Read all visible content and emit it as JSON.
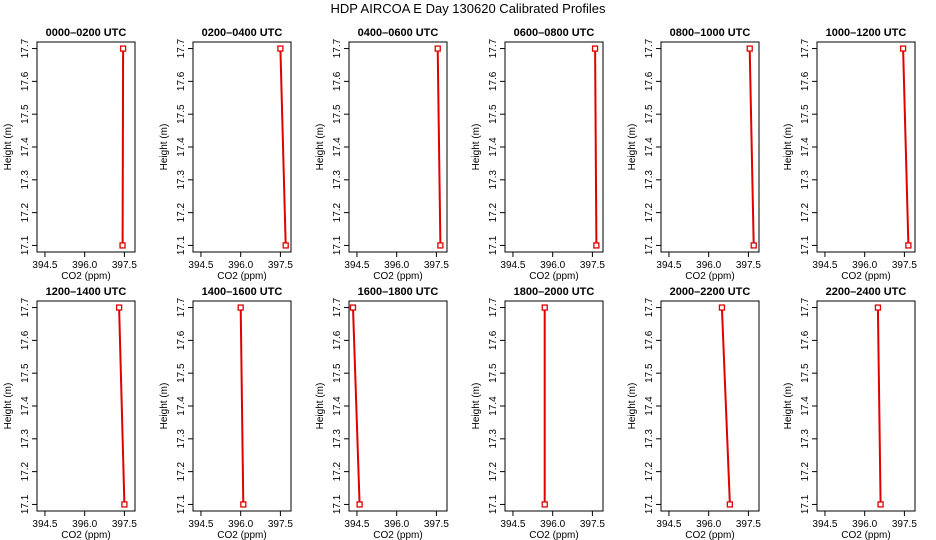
{
  "figure": {
    "title": "HDP AIRCOA E  Day 130620  Calibrated Profiles"
  },
  "chart_data": [
    {
      "type": "line",
      "title": "0000–0200 UTC",
      "xlabel": "CO2 (ppm)",
      "ylabel": "Height (m)",
      "xlim": [
        394.2,
        397.9
      ],
      "ylim": [
        17.08,
        17.72
      ],
      "xticks": [
        394.5,
        396.0,
        397.5
      ],
      "xtick_labels": [
        "394.5",
        "396.0",
        "397.5"
      ],
      "yticks": [
        17.1,
        17.2,
        17.3,
        17.4,
        17.5,
        17.6,
        17.7
      ],
      "ytick_labels": [
        "17.1",
        "17.2",
        "17.3",
        "17.4",
        "17.5",
        "17.6",
        "17.7"
      ],
      "grid": false,
      "series": [
        {
          "color": "#e00000",
          "points": [
            {
              "x": 397.45,
              "y": 17.7
            },
            {
              "x": 397.43,
              "y": 17.1
            }
          ]
        }
      ]
    },
    {
      "type": "line",
      "title": "0200–0400 UTC",
      "xlabel": "CO2 (ppm)",
      "ylabel": "Height (m)",
      "xlim": [
        394.2,
        397.9
      ],
      "ylim": [
        17.08,
        17.72
      ],
      "xticks": [
        394.5,
        396.0,
        397.5
      ],
      "xtick_labels": [
        "394.5",
        "396.0",
        "397.5"
      ],
      "yticks": [
        17.1,
        17.2,
        17.3,
        17.4,
        17.5,
        17.6,
        17.7
      ],
      "ytick_labels": [
        "17.1",
        "17.2",
        "17.3",
        "17.4",
        "17.5",
        "17.6",
        "17.7"
      ],
      "grid": false,
      "series": [
        {
          "color": "#e00000",
          "points": [
            {
              "x": 397.5,
              "y": 17.7
            },
            {
              "x": 397.7,
              "y": 17.1
            }
          ]
        }
      ]
    },
    {
      "type": "line",
      "title": "0400–0600 UTC",
      "xlabel": "CO2 (ppm)",
      "ylabel": "Height (m)",
      "xlim": [
        394.2,
        397.9
      ],
      "ylim": [
        17.08,
        17.72
      ],
      "xticks": [
        394.5,
        396.0,
        397.5
      ],
      "xtick_labels": [
        "394.5",
        "396.0",
        "397.5"
      ],
      "yticks": [
        17.1,
        17.2,
        17.3,
        17.4,
        17.5,
        17.6,
        17.7
      ],
      "ytick_labels": [
        "17.1",
        "17.2",
        "17.3",
        "17.4",
        "17.5",
        "17.6",
        "17.7"
      ],
      "grid": false,
      "series": [
        {
          "color": "#e00000",
          "points": [
            {
              "x": 397.55,
              "y": 17.7
            },
            {
              "x": 397.65,
              "y": 17.1
            }
          ]
        }
      ]
    },
    {
      "type": "line",
      "title": "0600–0800 UTC",
      "xlabel": "CO2 (ppm)",
      "ylabel": "Height (m)",
      "xlim": [
        394.2,
        397.9
      ],
      "ylim": [
        17.08,
        17.72
      ],
      "xticks": [
        394.5,
        396.0,
        397.5
      ],
      "xtick_labels": [
        "394.5",
        "396.0",
        "397.5"
      ],
      "yticks": [
        17.1,
        17.2,
        17.3,
        17.4,
        17.5,
        17.6,
        17.7
      ],
      "ytick_labels": [
        "17.1",
        "17.2",
        "17.3",
        "17.4",
        "17.5",
        "17.6",
        "17.7"
      ],
      "grid": false,
      "series": [
        {
          "color": "#e00000",
          "points": [
            {
              "x": 397.6,
              "y": 17.7
            },
            {
              "x": 397.65,
              "y": 17.1
            }
          ]
        }
      ]
    },
    {
      "type": "line",
      "title": "0800–1000 UTC",
      "xlabel": "CO2 (ppm)",
      "ylabel": "Height (m)",
      "xlim": [
        394.2,
        397.9
      ],
      "ylim": [
        17.08,
        17.72
      ],
      "xticks": [
        394.5,
        396.0,
        397.5
      ],
      "xtick_labels": [
        "394.5",
        "396.0",
        "397.5"
      ],
      "yticks": [
        17.1,
        17.2,
        17.3,
        17.4,
        17.5,
        17.6,
        17.7
      ],
      "ytick_labels": [
        "17.1",
        "17.2",
        "17.3",
        "17.4",
        "17.5",
        "17.6",
        "17.7"
      ],
      "grid": false,
      "series": [
        {
          "color": "#e00000",
          "points": [
            {
              "x": 397.55,
              "y": 17.7
            },
            {
              "x": 397.7,
              "y": 17.1
            }
          ]
        }
      ]
    },
    {
      "type": "line",
      "title": "1000–1200 UTC",
      "xlabel": "CO2 (ppm)",
      "ylabel": "Height (m)",
      "xlim": [
        394.2,
        397.9
      ],
      "ylim": [
        17.08,
        17.72
      ],
      "xticks": [
        394.5,
        396.0,
        397.5
      ],
      "xtick_labels": [
        "394.5",
        "396.0",
        "397.5"
      ],
      "yticks": [
        17.1,
        17.2,
        17.3,
        17.4,
        17.5,
        17.6,
        17.7
      ],
      "ytick_labels": [
        "17.1",
        "17.2",
        "17.3",
        "17.4",
        "17.5",
        "17.6",
        "17.7"
      ],
      "grid": false,
      "series": [
        {
          "color": "#e00000",
          "points": [
            {
              "x": 397.45,
              "y": 17.7
            },
            {
              "x": 397.65,
              "y": 17.1
            }
          ]
        }
      ]
    },
    {
      "type": "line",
      "title": "1200–1400 UTC",
      "xlabel": "CO2 (ppm)",
      "ylabel": "Height (m)",
      "xlim": [
        394.2,
        397.9
      ],
      "ylim": [
        17.08,
        17.72
      ],
      "xticks": [
        394.5,
        396.0,
        397.5
      ],
      "xtick_labels": [
        "394.5",
        "396.0",
        "397.5"
      ],
      "yticks": [
        17.1,
        17.2,
        17.3,
        17.4,
        17.5,
        17.6,
        17.7
      ],
      "ytick_labels": [
        "17.1",
        "17.2",
        "17.3",
        "17.4",
        "17.5",
        "17.6",
        "17.7"
      ],
      "grid": false,
      "series": [
        {
          "color": "#e00000",
          "points": [
            {
              "x": 397.3,
              "y": 17.7
            },
            {
              "x": 397.5,
              "y": 17.1
            }
          ]
        }
      ]
    },
    {
      "type": "line",
      "title": "1400–1600 UTC",
      "xlabel": "CO2 (ppm)",
      "ylabel": "Height (m)",
      "xlim": [
        394.2,
        397.9
      ],
      "ylim": [
        17.08,
        17.72
      ],
      "xticks": [
        394.5,
        396.0,
        397.5
      ],
      "xtick_labels": [
        "394.5",
        "396.0",
        "397.5"
      ],
      "yticks": [
        17.1,
        17.2,
        17.3,
        17.4,
        17.5,
        17.6,
        17.7
      ],
      "ytick_labels": [
        "17.1",
        "17.2",
        "17.3",
        "17.4",
        "17.5",
        "17.6",
        "17.7"
      ],
      "grid": false,
      "series": [
        {
          "color": "#e00000",
          "points": [
            {
              "x": 396.0,
              "y": 17.7
            },
            {
              "x": 396.1,
              "y": 17.1
            }
          ]
        }
      ]
    },
    {
      "type": "line",
      "title": "1600–1800 UTC",
      "xlabel": "CO2 (ppm)",
      "ylabel": "Height (m)",
      "xlim": [
        394.2,
        397.9
      ],
      "ylim": [
        17.08,
        17.72
      ],
      "xticks": [
        394.5,
        396.0,
        397.5
      ],
      "xtick_labels": [
        "394.5",
        "396.0",
        "397.5"
      ],
      "yticks": [
        17.1,
        17.2,
        17.3,
        17.4,
        17.5,
        17.6,
        17.7
      ],
      "ytick_labels": [
        "17.1",
        "17.2",
        "17.3",
        "17.4",
        "17.5",
        "17.6",
        "17.7"
      ],
      "grid": false,
      "series": [
        {
          "color": "#e00000",
          "points": [
            {
              "x": 394.35,
              "y": 17.7
            },
            {
              "x": 394.6,
              "y": 17.1
            }
          ]
        }
      ]
    },
    {
      "type": "line",
      "title": "1800–2000 UTC",
      "xlabel": "CO2 (ppm)",
      "ylabel": "Height (m)",
      "xlim": [
        394.2,
        397.9
      ],
      "ylim": [
        17.08,
        17.72
      ],
      "xticks": [
        394.5,
        396.0,
        397.5
      ],
      "xtick_labels": [
        "394.5",
        "396.0",
        "397.5"
      ],
      "yticks": [
        17.1,
        17.2,
        17.3,
        17.4,
        17.5,
        17.6,
        17.7
      ],
      "ytick_labels": [
        "17.1",
        "17.2",
        "17.3",
        "17.4",
        "17.5",
        "17.6",
        "17.7"
      ],
      "grid": false,
      "series": [
        {
          "color": "#e00000",
          "points": [
            {
              "x": 395.7,
              "y": 17.7
            },
            {
              "x": 395.7,
              "y": 17.1
            }
          ]
        }
      ]
    },
    {
      "type": "line",
      "title": "2000–2200 UTC",
      "xlabel": "CO2 (ppm)",
      "ylabel": "Height (m)",
      "xlim": [
        394.2,
        397.9
      ],
      "ylim": [
        17.08,
        17.72
      ],
      "xticks": [
        394.5,
        396.0,
        397.5
      ],
      "xtick_labels": [
        "394.5",
        "396.0",
        "397.5"
      ],
      "yticks": [
        17.1,
        17.2,
        17.3,
        17.4,
        17.5,
        17.6,
        17.7
      ],
      "ytick_labels": [
        "17.1",
        "17.2",
        "17.3",
        "17.4",
        "17.5",
        "17.6",
        "17.7"
      ],
      "grid": false,
      "series": [
        {
          "color": "#e00000",
          "points": [
            {
              "x": 396.5,
              "y": 17.7
            },
            {
              "x": 396.8,
              "y": 17.1
            }
          ]
        }
      ]
    },
    {
      "type": "line",
      "title": "2200–2400 UTC",
      "xlabel": "CO2 (ppm)",
      "ylabel": "Height (m)",
      "xlim": [
        394.2,
        397.9
      ],
      "ylim": [
        17.08,
        17.72
      ],
      "xticks": [
        394.5,
        396.0,
        397.5
      ],
      "xtick_labels": [
        "394.5",
        "396.0",
        "397.5"
      ],
      "yticks": [
        17.1,
        17.2,
        17.3,
        17.4,
        17.5,
        17.6,
        17.7
      ],
      "ytick_labels": [
        "17.1",
        "17.2",
        "17.3",
        "17.4",
        "17.5",
        "17.6",
        "17.7"
      ],
      "grid": false,
      "series": [
        {
          "color": "#e00000",
          "points": [
            {
              "x": 396.5,
              "y": 17.7
            },
            {
              "x": 396.6,
              "y": 17.1
            }
          ]
        }
      ]
    }
  ]
}
